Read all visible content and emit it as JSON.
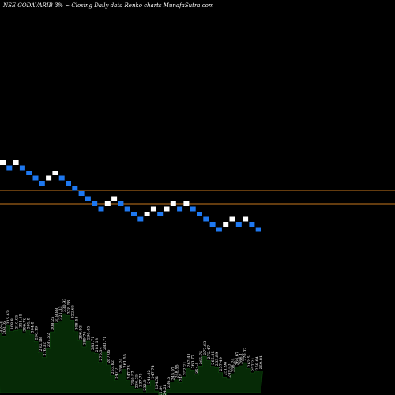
{
  "header": {
    "title": "NSE GODAVARIB 3% ~  Closing Daily data  Renko  charts MunafaSutra.com"
  },
  "colors": {
    "up_brick": "#ffffff",
    "down_brick": "#1e78f0",
    "reference_line": "#c8781e",
    "volume_fill": "#062a06",
    "volume_stroke": "#0d4a0d",
    "background": "#000000"
  },
  "chart_data": {
    "type": "renko",
    "brick_pct": 3,
    "bricks": [
      "up",
      "down",
      "up",
      "down",
      "down",
      "down",
      "down",
      "up",
      "up",
      "down",
      "down",
      "down",
      "down",
      "down",
      "down",
      "down",
      "up",
      "up",
      "down",
      "down",
      "down",
      "down",
      "up",
      "up",
      "down",
      "up",
      "up",
      "down",
      "up",
      "down",
      "down",
      "down",
      "down",
      "down",
      "up",
      "up",
      "down",
      "up",
      "down",
      "down"
    ],
    "volume_labels": [
      "305.8",
      "303.05",
      "315.63",
      "308.8",
      "310.05",
      "311.55",
      "306.76",
      "309.8",
      "304.8",
      "296.19",
      "282.18",
      "276.32",
      "287.52",
      "308.25",
      "318.88",
      "321.33",
      "330.93",
      "328.58",
      "322.65",
      "308.53",
      "296.93",
      "289.76",
      "296.45",
      "283.71",
      "281.18",
      "270.34",
      "283.71",
      "267.06",
      "253.82",
      "247.7",
      "256.24",
      "261.55",
      "247.73",
      "240.57",
      "236.25",
      "237.75",
      "232.9",
      "241.82",
      "247.74",
      "234.51",
      "222.84",
      "224.21",
      "236.5",
      "245.97",
      "248.55",
      "245",
      "252.21",
      "262.41",
      "260.77",
      "254.5",
      "265.75",
      "277.63",
      "272.47",
      "265.35",
      "263.89",
      "257.49",
      "251.98",
      "249.43",
      "256.24",
      "264.67",
      "266.1",
      "270.02",
      "262.5",
      "257.21",
      "258.64",
      "259.81"
    ]
  }
}
